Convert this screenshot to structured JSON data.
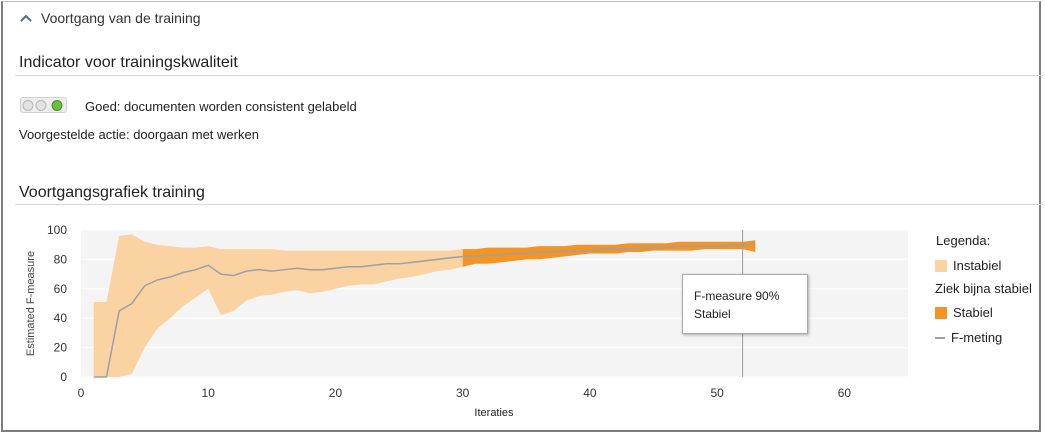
{
  "section": {
    "collapse_label": "Voortgang van de training"
  },
  "quality": {
    "title": "Indicator voor trainingskwaliteit",
    "status_text": "Goed: documenten worden consistent gelabeld",
    "suggested_action": "Voorgestelde actie: doorgaan met werken",
    "light_color": "#6cbf3a"
  },
  "progress": {
    "title": "Voortgangsgrafiek training"
  },
  "legend": {
    "title": "Legenda:",
    "items": [
      {
        "label": "Instabiel",
        "color": "#fbd3a2"
      },
      {
        "label": "Ziek bijna stabiel"
      },
      {
        "label": "Stabiel",
        "color": "#f39423"
      },
      {
        "label": "F-meting",
        "color": "#9aa1a8"
      }
    ]
  },
  "tooltip": {
    "line1": "F-measure 90%",
    "line2": "Stabiel"
  },
  "chart_data": {
    "type": "area",
    "xlabel": "Iteraties",
    "ylabel": "Estimated F-measure",
    "xlim": [
      0,
      65
    ],
    "ylim": [
      0,
      100
    ],
    "xticks": [
      0,
      10,
      20,
      30,
      40,
      50,
      60
    ],
    "yticks": [
      0,
      20,
      40,
      60,
      80,
      100
    ],
    "grid": true,
    "marker_x": 52,
    "x": [
      1,
      2,
      3,
      4,
      5,
      6,
      7,
      8,
      9,
      10,
      11,
      12,
      13,
      14,
      15,
      16,
      17,
      18,
      19,
      20,
      21,
      22,
      23,
      24,
      25,
      26,
      27,
      28,
      29,
      30,
      31,
      32,
      33,
      34,
      35,
      36,
      37,
      38,
      39,
      40,
      41,
      42,
      43,
      44,
      45,
      46,
      47,
      48,
      49,
      50,
      51,
      52,
      53
    ],
    "series": [
      {
        "name": "F-meting",
        "values": [
          0,
          0,
          45,
          50,
          62,
          66,
          68,
          71,
          73,
          76,
          70,
          69,
          72,
          73,
          72,
          73,
          74,
          73,
          73,
          74,
          75,
          75,
          76,
          77,
          77,
          78,
          79,
          80,
          81,
          82,
          82,
          83,
          83,
          84,
          84,
          85,
          85,
          86,
          86,
          86,
          87,
          87,
          87,
          88,
          88,
          88,
          89,
          89,
          89,
          89,
          90,
          90,
          91
        ]
      },
      {
        "name": "upper",
        "values": [
          51,
          51,
          96,
          97,
          92,
          90,
          89,
          88,
          88,
          89,
          87,
          87,
          87,
          87,
          87,
          86,
          86,
          86,
          86,
          86,
          86,
          86,
          86,
          86,
          86,
          86,
          86,
          86,
          86,
          87,
          87,
          88,
          88,
          88,
          88,
          89,
          89,
          89,
          90,
          90,
          90,
          90,
          91,
          91,
          91,
          91,
          92,
          92,
          92,
          92,
          92,
          92,
          93
        ]
      },
      {
        "name": "lower",
        "values": [
          0,
          0,
          0,
          2,
          20,
          33,
          40,
          48,
          54,
          60,
          42,
          45,
          52,
          55,
          56,
          58,
          59,
          57,
          58,
          60,
          62,
          63,
          63,
          65,
          67,
          68,
          70,
          72,
          73,
          75,
          77,
          77,
          78,
          79,
          80,
          80,
          81,
          82,
          83,
          84,
          84,
          84,
          85,
          85,
          86,
          86,
          86,
          86,
          87,
          87,
          87,
          87,
          85
        ]
      }
    ],
    "stable_from_x": 30
  }
}
